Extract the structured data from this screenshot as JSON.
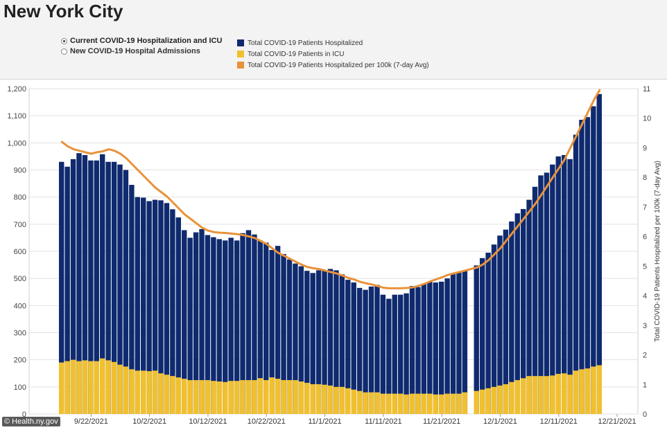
{
  "page": {
    "title": "New York City",
    "source": "© Health.ny.gov"
  },
  "controls": {
    "radio_options": [
      {
        "label": "Current COVID-19 Hospitalization and ICU",
        "selected": true
      },
      {
        "label": "New COVID-19 Hospital Admissions",
        "selected": false
      }
    ]
  },
  "legend": [
    {
      "label": "Total COVID-19 Patients Hospitalized",
      "color": "#0f2a6e"
    },
    {
      "label": "Total COVID-19 Patients in ICU",
      "color": "#f0c02f"
    },
    {
      "label": "Total COVID-19 Patients Hospitalized per 100k (7-day Avg)",
      "color": "#e8923a"
    }
  ],
  "chart_data": {
    "type": "bar",
    "title": "New York City",
    "y_left_label": "",
    "y_right_label": "Total COVID-19 Patients Hospitalized per 100k (7-day Avg)",
    "ylim_left": [
      0,
      1200
    ],
    "yticks_left": [
      "0",
      "100",
      "200",
      "300",
      "400",
      "500",
      "600",
      "700",
      "800",
      "900",
      "1,000",
      "1,100",
      "1,200"
    ],
    "ylim_right": [
      0,
      11
    ],
    "yticks_right": [
      "0",
      "1",
      "2",
      "3",
      "4",
      "5",
      "6",
      "7",
      "8",
      "9",
      "10",
      "11"
    ],
    "x_tick_labels": [
      {
        "label": "9/22/2021",
        "day": 5
      },
      {
        "label": "10/2/2021",
        "day": 15
      },
      {
        "label": "10/12/2021",
        "day": 25
      },
      {
        "label": "10/22/2021",
        "day": 35
      },
      {
        "label": "11/1/2021",
        "day": 45
      },
      {
        "label": "11/11/2021",
        "day": 55
      },
      {
        "label": "11/21/2021",
        "day": 65
      },
      {
        "label": "12/1/2021",
        "day": 75
      },
      {
        "label": "12/11/2021",
        "day": 85
      },
      {
        "label": "12/21/2021",
        "day": 95
      }
    ],
    "start_date": "9/17/2021",
    "grid": "horizontal",
    "colors": {
      "hospitalized": "#0f2a6e",
      "icu": "#f0c02f",
      "per100k": "#e8923a",
      "grid": "#e2e2e2"
    },
    "series": [
      {
        "name": "Total COVID-19 Patients Hospitalized",
        "values": [
          930,
          912,
          940,
          962,
          955,
          935,
          935,
          958,
          930,
          930,
          920,
          900,
          845,
          800,
          798,
          785,
          790,
          788,
          778,
          755,
          725,
          678,
          650,
          670,
          682,
          660,
          652,
          645,
          640,
          650,
          640,
          667,
          678,
          662,
          640,
          632,
          605,
          620,
          590,
          570,
          555,
          545,
          528,
          520,
          530,
          530,
          535,
          530,
          515,
          495,
          485,
          465,
          458,
          470,
          476,
          440,
          425,
          440,
          440,
          445,
          472,
          468,
          480,
          488,
          485,
          488,
          500,
          520,
          525,
          530,
          null,
          548,
          575,
          595,
          625,
          658,
          680,
          710,
          740,
          756,
          790,
          838,
          880,
          890,
          920,
          950,
          955,
          940,
          1030,
          1085,
          1095,
          1135,
          1180
        ]
      },
      {
        "name": "Total COVID-19 Patients in ICU",
        "values": [
          190,
          195,
          200,
          195,
          198,
          195,
          195,
          205,
          198,
          192,
          182,
          175,
          165,
          160,
          160,
          158,
          160,
          150,
          145,
          140,
          135,
          130,
          125,
          125,
          125,
          125,
          122,
          120,
          118,
          122,
          122,
          125,
          125,
          125,
          132,
          125,
          135,
          130,
          125,
          125,
          125,
          120,
          115,
          110,
          110,
          108,
          105,
          100,
          100,
          95,
          90,
          85,
          80,
          80,
          80,
          75,
          75,
          75,
          75,
          72,
          75,
          75,
          75,
          75,
          72,
          72,
          75,
          75,
          75,
          80,
          null,
          85,
          90,
          95,
          100,
          105,
          110,
          118,
          125,
          132,
          140,
          140,
          140,
          140,
          142,
          148,
          150,
          145,
          160,
          165,
          168,
          175,
          180
        ]
      },
      {
        "name": "Total COVID-19 Patients Hospitalized per 100k (7-day Avg)",
        "values": [
          9.2,
          9.05,
          8.95,
          8.9,
          8.85,
          8.8,
          8.85,
          8.88,
          8.95,
          8.9,
          8.8,
          8.65,
          8.45,
          8.25,
          8.05,
          7.85,
          7.65,
          7.5,
          7.35,
          7.15,
          6.95,
          6.75,
          6.6,
          6.45,
          6.3,
          6.2,
          6.15,
          6.13,
          6.12,
          6.1,
          6.08,
          6.05,
          6.0,
          5.95,
          5.85,
          5.75,
          5.6,
          5.45,
          5.35,
          5.25,
          5.15,
          5.05,
          4.97,
          4.93,
          4.9,
          4.85,
          4.8,
          4.75,
          4.68,
          4.6,
          4.55,
          4.47,
          4.42,
          4.38,
          4.33,
          4.27,
          4.25,
          4.25,
          4.25,
          4.26,
          4.28,
          4.33,
          4.4,
          4.48,
          4.55,
          4.62,
          4.7,
          4.75,
          4.8,
          4.85,
          4.9,
          4.95,
          5.05,
          5.2,
          5.4,
          5.6,
          5.85,
          6.1,
          6.35,
          6.6,
          6.85,
          7.1,
          7.4,
          7.7,
          8.0,
          8.3,
          8.6,
          9.0,
          9.4,
          9.8,
          10.2,
          10.6,
          10.95
        ]
      }
    ]
  }
}
